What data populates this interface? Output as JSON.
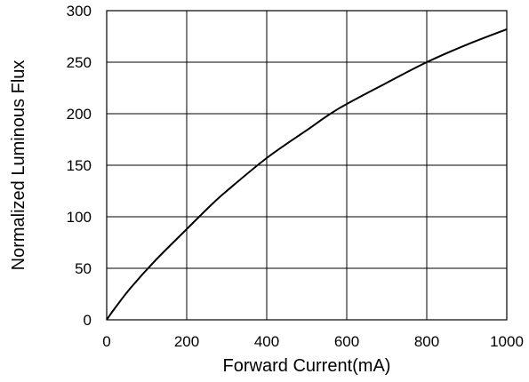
{
  "chart_data": {
    "type": "line",
    "title": "",
    "xlabel": "Forward Current(mA)",
    "ylabel": "Normalized Luminous Flux",
    "xlim": [
      0,
      1000
    ],
    "ylim": [
      0,
      300
    ],
    "x_ticks": [
      "0",
      "200",
      "400",
      "600",
      "800",
      "1000"
    ],
    "y_ticks": [
      "0",
      "50",
      "100",
      "150",
      "200",
      "250",
      "300"
    ],
    "grid": true,
    "line_color": "#000000",
    "series": [
      {
        "x": [
          0,
          20,
          60,
          120,
          200,
          260,
          300,
          400,
          500,
          580,
          700,
          800,
          900,
          1000
        ],
        "values": [
          0,
          11,
          31,
          57,
          88,
          111,
          125,
          157,
          184,
          205,
          230,
          250,
          267,
          282
        ]
      }
    ]
  }
}
